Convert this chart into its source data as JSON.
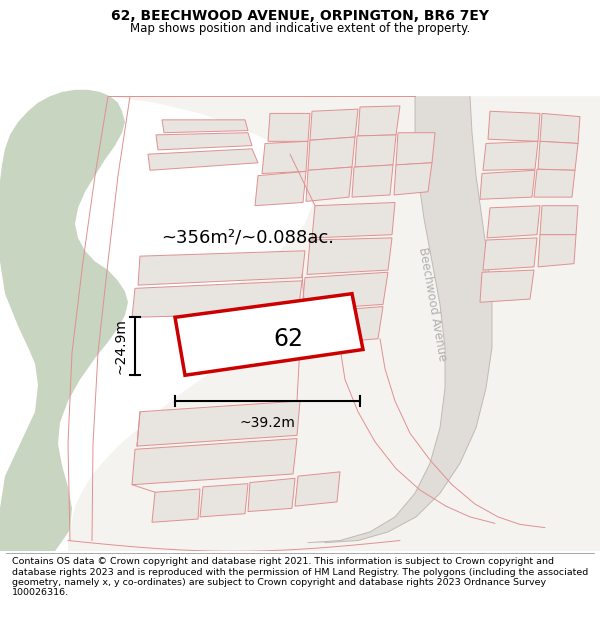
{
  "title_line1": "62, BEECHWOOD AVENUE, ORPINGTON, BR6 7EY",
  "title_line2": "Map shows position and indicative extent of the property.",
  "area_text": "~356m²/~0.088ac.",
  "label_62": "62",
  "dim_width": "~39.2m",
  "dim_height": "~24.9m",
  "street_label": "Beechwood Avenue",
  "footer_text": "Contains OS data © Crown copyright and database right 2021. This information is subject to Crown copyright and database rights 2023 and is reproduced with the permission of HM Land Registry. The polygons (including the associated geometry, namely x, y co-ordinates) are subject to Crown copyright and database rights 2023 Ordnance Survey 100026316.",
  "bg_color": "#f0eeea",
  "green_color": "#c8d5c0",
  "white_area": "#f8f6f2",
  "parcel_fill": "#e8e4e0",
  "parcel_edge": "#e09090",
  "road_fill": "#dedad6",
  "red_line": "#cc0000",
  "road_label_color": "#b0b0b0",
  "title_fontsize": 10,
  "subtitle_fontsize": 9,
  "footer_fontsize": 6.8
}
